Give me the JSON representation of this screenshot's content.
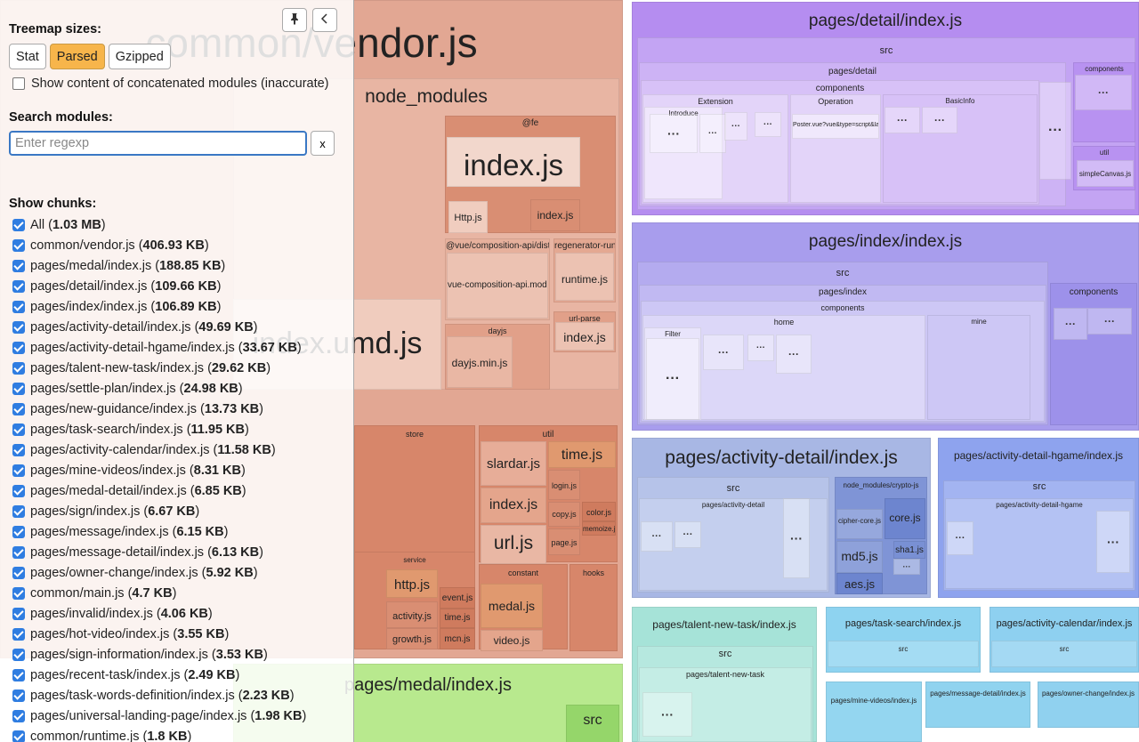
{
  "sidebar": {
    "pin_icon": "pin-icon",
    "collapse_icon": "chevron-left-icon",
    "treemap_sizes_title": "Treemap sizes:",
    "size_buttons": [
      "Stat",
      "Parsed",
      "Gzipped"
    ],
    "active_size": "Parsed",
    "concat_label": "Show content of concatenated modules (inaccurate)",
    "search_title": "Search modules:",
    "search_placeholder": "Enter regexp",
    "search_clear": "x",
    "chunks_title": "Show chunks:",
    "chunks": [
      {
        "name": "All",
        "size": "1.03 MB"
      },
      {
        "name": "common/vendor.js",
        "size": "406.93 KB"
      },
      {
        "name": "pages/medal/index.js",
        "size": "188.85 KB"
      },
      {
        "name": "pages/detail/index.js",
        "size": "109.66 KB"
      },
      {
        "name": "pages/index/index.js",
        "size": "106.89 KB"
      },
      {
        "name": "pages/activity-detail/index.js",
        "size": "49.69 KB"
      },
      {
        "name": "pages/activity-detail-hgame/index.js",
        "size": "33.67 KB"
      },
      {
        "name": "pages/talent-new-task/index.js",
        "size": "29.62 KB"
      },
      {
        "name": "pages/settle-plan/index.js",
        "size": "24.98 KB"
      },
      {
        "name": "pages/new-guidance/index.js",
        "size": "13.73 KB"
      },
      {
        "name": "pages/task-search/index.js",
        "size": "11.95 KB"
      },
      {
        "name": "pages/activity-calendar/index.js",
        "size": "11.58 KB"
      },
      {
        "name": "pages/mine-videos/index.js",
        "size": "8.31 KB"
      },
      {
        "name": "pages/medal-detail/index.js",
        "size": "6.85 KB"
      },
      {
        "name": "pages/sign/index.js",
        "size": "6.67 KB"
      },
      {
        "name": "pages/message/index.js",
        "size": "6.15 KB"
      },
      {
        "name": "pages/message-detail/index.js",
        "size": "6.13 KB"
      },
      {
        "name": "pages/owner-change/index.js",
        "size": "5.92 KB"
      },
      {
        "name": "common/main.js",
        "size": "4.7 KB"
      },
      {
        "name": "pages/invalid/index.js",
        "size": "4.06 KB"
      },
      {
        "name": "pages/hot-video/index.js",
        "size": "3.55 KB"
      },
      {
        "name": "pages/sign-information/index.js",
        "size": "3.53 KB"
      },
      {
        "name": "pages/recent-task/index.js",
        "size": "2.49 KB"
      },
      {
        "name": "pages/task-words-definition/index.js",
        "size": "2.23 KB"
      },
      {
        "name": "pages/universal-landing-page/index.js",
        "size": "1.98 KB"
      },
      {
        "name": "common/runtime.js",
        "size": "1.8 KB"
      }
    ]
  },
  "treemap": {
    "dots": "···",
    "tiles": [
      {
        "label": "common/vendor.js",
        "color": "#e2a793",
        "big": true
      },
      {
        "label": "node_modules",
        "color": "#e8b5a3"
      },
      {
        "label": "@fe",
        "color": "#d98e73"
      },
      {
        "label": "index.js",
        "color": "#f2d7cc"
      },
      {
        "label": "Http.js",
        "color": "#f0cdbf"
      },
      {
        "label": "index.js",
        "color": "#d98e73"
      },
      {
        "label": "@vue/composition-api/dist",
        "color": "#e6b09c"
      },
      {
        "label": "vue-composition-api.module.js",
        "color": "#ecc2b2"
      },
      {
        "label": "regenerator-runtime",
        "color": "#e4a892"
      },
      {
        "label": "runtime.js",
        "color": "#ecc2b2"
      },
      {
        "label": "dayjs",
        "color": "#e1a089"
      },
      {
        "label": "dayjs.min.js",
        "color": "#e9b7a4"
      },
      {
        "label": "url-parse",
        "color": "#e1a089"
      },
      {
        "label": "index.js",
        "color": "#ecc2b2"
      },
      {
        "label": "index.umd.js",
        "color": "#f0ccbe"
      },
      {
        "label": "store",
        "color": "#d7866a"
      },
      {
        "label": "util",
        "color": "#d7866a"
      },
      {
        "label": "slardar.js",
        "color": "#e7ad98"
      },
      {
        "label": "time.js",
        "color": "#e0996f"
      },
      {
        "label": "index.js",
        "color": "#e4a58c"
      },
      {
        "label": "url.js",
        "color": "#e9b7a4"
      },
      {
        "label": "login.js",
        "color": "#d98e73"
      },
      {
        "label": "copy.js",
        "color": "#d98e73"
      },
      {
        "label": "page.js",
        "color": "#d98e73"
      },
      {
        "label": "color.js",
        "color": "#cf7b5e"
      },
      {
        "label": "memoize.js",
        "color": "#cf7b5e"
      },
      {
        "label": "service",
        "color": "#d7866a"
      },
      {
        "label": "http.js",
        "color": "#e0996f"
      },
      {
        "label": "activity.js",
        "color": "#d98e73"
      },
      {
        "label": "growth.js",
        "color": "#d98e73"
      },
      {
        "label": "event.js",
        "color": "#cf7b5e"
      },
      {
        "label": "time.js",
        "color": "#cf7b5e"
      },
      {
        "label": "mcn.js",
        "color": "#cf7b5e"
      },
      {
        "label": "constant",
        "color": "#d7866a"
      },
      {
        "label": "medal.js",
        "color": "#e0996f"
      },
      {
        "label": "video.js",
        "color": "#e4a58c"
      },
      {
        "label": "hooks",
        "color": "#d7866a"
      },
      {
        "label": "pages/medal/index.js",
        "color": "#b8e98e"
      },
      {
        "label": "src",
        "color": "#95d66a"
      },
      {
        "label": "pages/detail/index.js",
        "color": "#b58df0"
      },
      {
        "label": "src",
        "color": "#c3a4f3"
      },
      {
        "label": "pages/detail",
        "color": "#cdb3f5"
      },
      {
        "label": "components",
        "color": "#d7c1f7"
      },
      {
        "label": "Extension",
        "color": "#e3d4f9"
      },
      {
        "label": "Introduce",
        "color": "#efe6fc"
      },
      {
        "label": "Operation",
        "color": "#e3d4f9"
      },
      {
        "label": "Poster.vue?vue&type=script&lang=js&",
        "color": "#f0e8fc"
      },
      {
        "label": "BasicInfo",
        "color": "#d7c1f7"
      },
      {
        "label": "components",
        "color": "#b892f1"
      },
      {
        "label": "util",
        "color": "#b892f1"
      },
      {
        "label": "simpleCanvas.js",
        "color": "#d2bbf6"
      },
      {
        "label": "pages/index/index.js",
        "color": "#a89ded"
      },
      {
        "label": "src",
        "color": "#b4abef"
      },
      {
        "label": "pages/index",
        "color": "#c1b9f2"
      },
      {
        "label": "components",
        "color": "#cdc7f5"
      },
      {
        "label": "home",
        "color": "#dcd7f8"
      },
      {
        "label": "Filter",
        "color": "#e8e4fb"
      },
      {
        "label": "mine",
        "color": "#cdc7f5"
      },
      {
        "label": "components",
        "color": "#9d91ea"
      },
      {
        "label": "pages/activity-detail/index.js",
        "color": "#a8b7e4"
      },
      {
        "label": "src",
        "color": "#b6c3e9"
      },
      {
        "label": "pages/activity-detail",
        "color": "#c4cfee"
      },
      {
        "label": "node_modules/crypto-js",
        "color": "#7f94d6"
      },
      {
        "label": "cipher-core.js",
        "color": "#96a8dd"
      },
      {
        "label": "core.js",
        "color": "#6d85cf"
      },
      {
        "label": "md5.js",
        "color": "#8ea1da"
      },
      {
        "label": "sha1.js",
        "color": "#7990d4"
      },
      {
        "label": "aes.js",
        "color": "#6d85cf"
      },
      {
        "label": "pages/activity-detail-hgame/index.js",
        "color": "#8ea3ee"
      },
      {
        "label": "src",
        "color": "#a3b4f1"
      },
      {
        "label": "pages/activity-detail-hgame",
        "color": "#b4c2f3"
      },
      {
        "label": "pages/talent-new-task/index.js",
        "color": "#a6e3d8"
      },
      {
        "label": "src",
        "color": "#b6e8df"
      },
      {
        "label": "pages/talent-new-task",
        "color": "#c4ede5"
      },
      {
        "label": "pages/task-search/index.js",
        "color": "#8ed3f0"
      },
      {
        "label": "src",
        "color": "#a4dcf3"
      },
      {
        "label": "pages/activity-calendar/index.js",
        "color": "#8ed0f0"
      },
      {
        "label": "src",
        "color": "#a4d9f3"
      },
      {
        "label": "pages/mine-videos/index.js",
        "color": "#94d6f0"
      },
      {
        "label": "pages/message-detail/index.js",
        "color": "#90d3ef"
      },
      {
        "label": "pages/owner-change/index.js",
        "color": "#90d1ef"
      }
    ]
  }
}
